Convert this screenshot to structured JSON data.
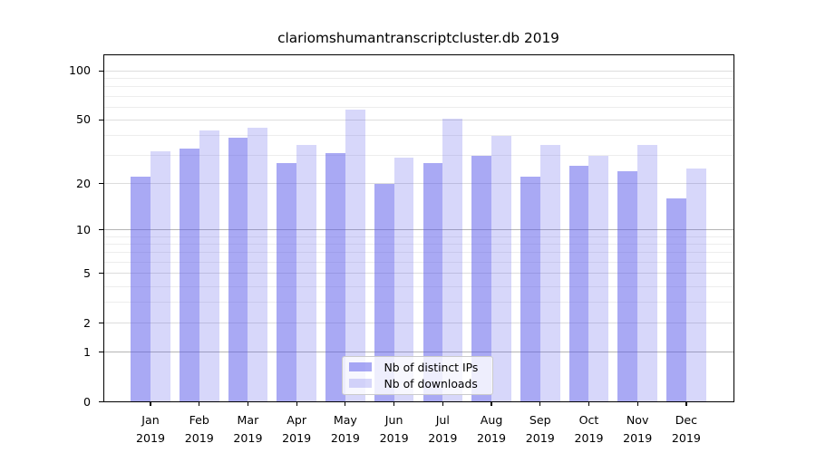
{
  "chart_data": {
    "type": "bar",
    "title": "clariomshumantranscriptcluster.db 2019",
    "categories": [
      "Jan",
      "Feb",
      "Mar",
      "Apr",
      "May",
      "Jun",
      "Jul",
      "Aug",
      "Sep",
      "Oct",
      "Nov",
      "Dec"
    ],
    "x_year_label": "2019",
    "series": [
      {
        "name": "Nb of distinct IPs",
        "color": "rgba(83,83,233,0.50)",
        "values": [
          22,
          33,
          39,
          27,
          31,
          20,
          27,
          30,
          22,
          26,
          24,
          16
        ]
      },
      {
        "name": "Nb of downloads",
        "color": "rgba(83,83,233,0.23)",
        "values": [
          32,
          43,
          45,
          35,
          58,
          29,
          51,
          40,
          35,
          30,
          35,
          25
        ]
      }
    ],
    "xlabel": "",
    "ylabel": "",
    "yscale": "log1p",
    "ylim": [
      0,
      124
    ],
    "yticks": [
      0,
      1,
      2,
      5,
      10,
      20,
      50,
      100
    ],
    "yticks_minor": [
      3,
      4,
      6,
      7,
      8,
      9,
      30,
      40,
      60,
      70,
      80,
      90
    ],
    "grid": true,
    "legend_position": "lower center"
  },
  "colors": {
    "ips_bar": "rgba(83,83,233,0.50)",
    "downloads_bar": "rgba(83,83,233,0.23)",
    "grid_strong": "#b4b4b4",
    "grid_mid": "#dddddd",
    "grid_minor": "#ededed",
    "axis": "#000000",
    "legend_border": "#cbcbcb",
    "background": "#ffffff"
  }
}
